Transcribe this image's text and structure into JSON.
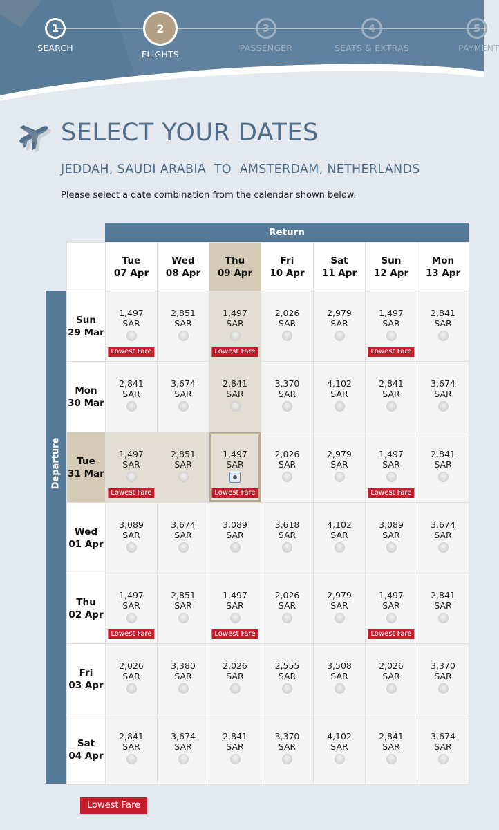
{
  "stepper": {
    "steps": [
      {
        "number": "1",
        "label": "SEARCH"
      },
      {
        "number": "2",
        "label": "FLIGHTS"
      },
      {
        "number": "3",
        "label": "PASSENGER"
      },
      {
        "number": "4",
        "label": "SEATS & EXTRAS"
      },
      {
        "number": "5",
        "label": "PAYMENT"
      }
    ],
    "active_step": 2
  },
  "title": "SELECT YOUR DATES",
  "route": "JEDDAH, SAUDI ARABIA  TO  AMSTERDAM, NETHERLANDS",
  "instruction": "Please select a date combination from the calendar shown below.",
  "return_label": "Return",
  "departure_label": "Departure",
  "currency": "SAR",
  "lowest_fare_label": "Lowest Fare",
  "legend_label": "Lowest Fare",
  "return_dates": [
    {
      "day": "Tue",
      "date": "07 Apr"
    },
    {
      "day": "Wed",
      "date": "08 Apr"
    },
    {
      "day": "Thu",
      "date": "09 Apr"
    },
    {
      "day": "Fri",
      "date": "10 Apr"
    },
    {
      "day": "Sat",
      "date": "11 Apr"
    },
    {
      "day": "Sun",
      "date": "12 Apr"
    },
    {
      "day": "Mon",
      "date": "13 Apr"
    }
  ],
  "departure_dates": [
    {
      "day": "Sun",
      "date": "29 Mar"
    },
    {
      "day": "Mon",
      "date": "30 Mar"
    },
    {
      "day": "Tue",
      "date": "31 Mar"
    },
    {
      "day": "Wed",
      "date": "01 Apr"
    },
    {
      "day": "Thu",
      "date": "02 Apr"
    },
    {
      "day": "Fri",
      "date": "03 Apr"
    },
    {
      "day": "Sat",
      "date": "04 Apr"
    }
  ],
  "selected": {
    "return_index": 2,
    "departure_index": 2
  },
  "fares": [
    [
      "1,497",
      "2,851",
      "1,497",
      "2,026",
      "2,979",
      "1,497",
      "2,841"
    ],
    [
      "2,841",
      "3,674",
      "2,841",
      "3,370",
      "4,102",
      "2,841",
      "3,674"
    ],
    [
      "1,497",
      "2,851",
      "1,497",
      "2,026",
      "2,979",
      "1,497",
      "2,841"
    ],
    [
      "3,089",
      "3,674",
      "3,089",
      "3,618",
      "4,102",
      "3,089",
      "3,674"
    ],
    [
      "1,497",
      "2,851",
      "1,497",
      "2,026",
      "2,979",
      "1,497",
      "2,841"
    ],
    [
      "2,026",
      "3,380",
      "2,026",
      "2,555",
      "3,508",
      "2,026",
      "3,370"
    ],
    [
      "2,841",
      "3,674",
      "2,841",
      "3,370",
      "4,102",
      "2,841",
      "3,674"
    ]
  ],
  "lowest_fare_cells": [
    [
      0,
      0
    ],
    [
      0,
      2
    ],
    [
      0,
      5
    ],
    [
      2,
      0
    ],
    [
      2,
      2
    ],
    [
      2,
      5
    ],
    [
      4,
      0
    ],
    [
      4,
      2
    ],
    [
      4,
      5
    ]
  ],
  "colors": {
    "header_blue": "#557a98",
    "accent_gold": "#b39f84",
    "lowest_fare_red": "#c41e2c",
    "selected_tint": "#d4cab5"
  }
}
